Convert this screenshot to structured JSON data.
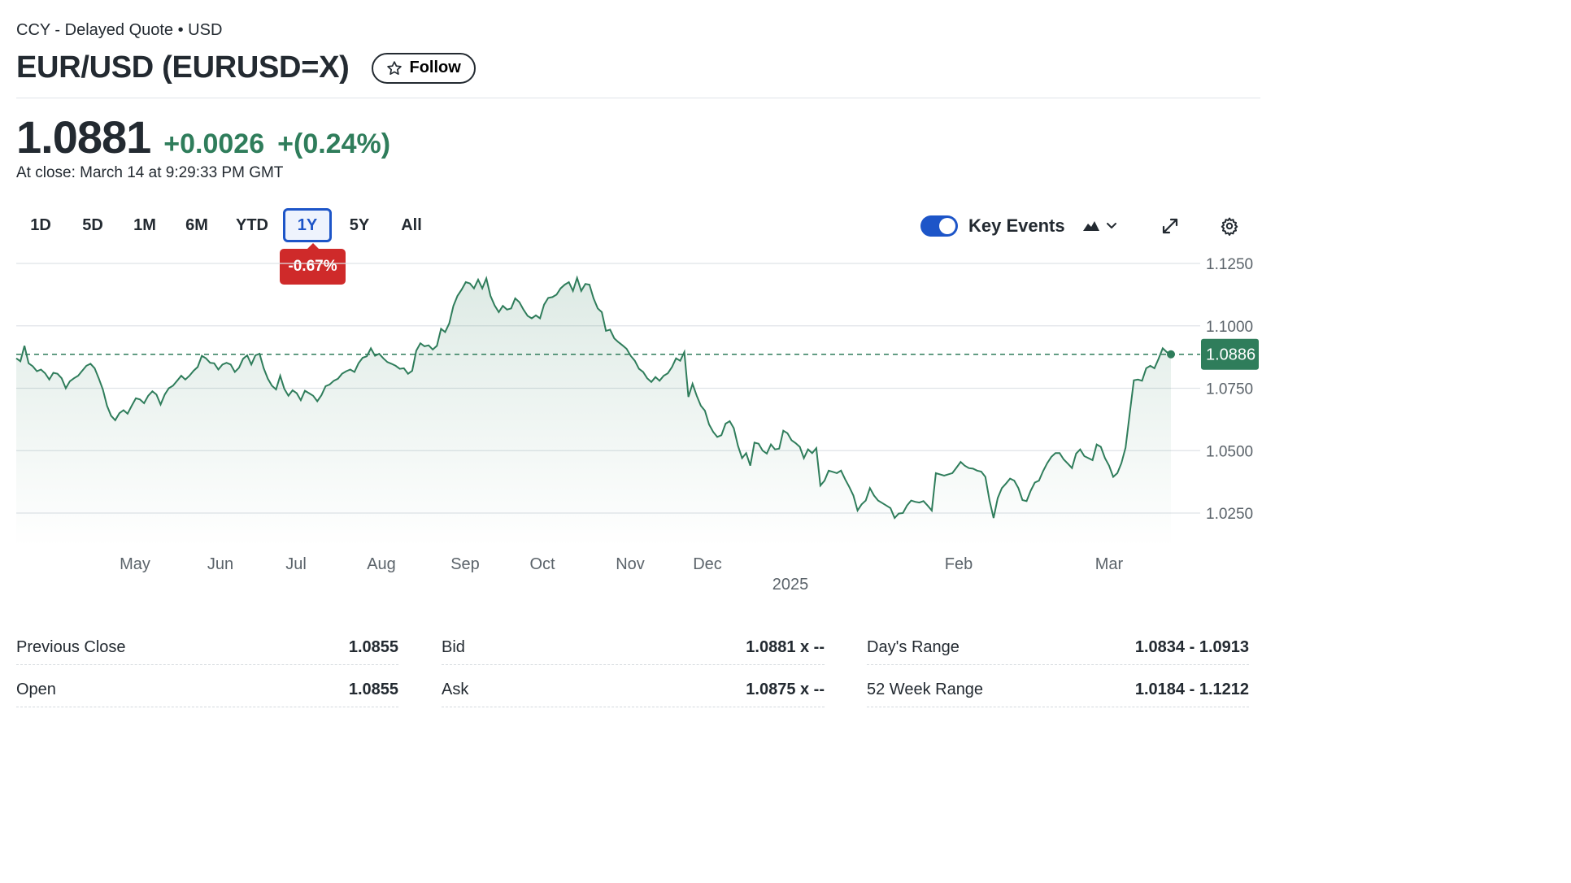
{
  "header": {
    "exchange_line": "CCY - Delayed Quote • USD",
    "title": "EUR/USD (EURUSD=X)",
    "follow_label": "Follow"
  },
  "quote": {
    "price": "1.0881",
    "change": "+0.0026",
    "change_pct": "+(0.24%)",
    "close_time": "At close: March 14 at 9:29:33 PM GMT"
  },
  "range_tabs": [
    "1D",
    "5D",
    "1M",
    "6M",
    "YTD",
    "1Y",
    "5Y",
    "All"
  ],
  "active_range": "1Y",
  "range_performance": "-0.67%",
  "controls": {
    "key_events_label": "Key Events",
    "key_events_enabled": true,
    "chart_type_icon": "mountain-chart-icon",
    "expand_icon": "expand-icon",
    "settings_icon": "gear-icon"
  },
  "colors": {
    "positive": "#2f7d5b",
    "negative": "#cf2a2a",
    "accent": "#1d55c8",
    "line": "#2f7d5b"
  },
  "chart_data": {
    "type": "area",
    "title": "",
    "xlabel": "",
    "ylabel": "",
    "ylim": [
      1.0175,
      1.1275
    ],
    "y_ticks": [
      "1.1250",
      "1.1000",
      "1.0750",
      "1.0500",
      "1.0250"
    ],
    "x_month_labels": [
      "May",
      "Jun",
      "Jul",
      "Aug",
      "Sep",
      "Oct",
      "Nov",
      "Dec",
      "Feb",
      "Mar"
    ],
    "x_year_label": "2025",
    "previous_close": 1.0855,
    "last_value_label": "1.0886",
    "last_value": 1.0886,
    "series": [
      {
        "values": [
          1.087,
          1.0858,
          1.092,
          1.085,
          1.0838,
          1.0818,
          1.0825,
          1.081,
          1.0785,
          1.0812,
          1.0808,
          1.079,
          1.075,
          1.0778,
          1.079,
          1.08,
          1.082,
          1.084,
          1.0848,
          1.083,
          1.079,
          1.0745,
          1.068,
          1.064,
          1.0622,
          1.065,
          1.0662,
          1.0648,
          1.068,
          1.071,
          1.0705,
          1.069,
          1.072,
          1.0738,
          1.0725,
          1.0685,
          1.0725,
          1.075,
          1.076,
          1.078,
          1.08,
          1.0785,
          1.08,
          1.082,
          1.0835,
          1.088,
          1.087,
          1.0852,
          1.085,
          1.0825,
          1.0845,
          1.0852,
          1.0845,
          1.0815,
          1.0832,
          1.0868,
          1.0882,
          1.0845,
          1.0882,
          1.0888,
          1.083,
          1.0788,
          1.076,
          1.0745,
          1.08,
          1.0748,
          1.072,
          1.0742,
          1.073,
          1.0702,
          1.074,
          1.073,
          1.072,
          1.0698,
          1.0722,
          1.0758,
          1.0765,
          1.078,
          1.0788,
          1.0808,
          1.0818,
          1.0825,
          1.0815,
          1.085,
          1.0872,
          1.0878,
          1.091,
          1.088,
          1.0888,
          1.087,
          1.0855,
          1.0848,
          1.084,
          1.0828,
          1.083,
          1.0808,
          1.082,
          1.09,
          1.093,
          1.0918,
          1.0922,
          1.0905,
          1.092,
          1.0988,
          1.0975,
          1.101,
          1.108,
          1.112,
          1.1145,
          1.1175,
          1.117,
          1.115,
          1.1185,
          1.115,
          1.119,
          1.112,
          1.1082,
          1.1055,
          1.108,
          1.1065,
          1.107,
          1.111,
          1.1095,
          1.1065,
          1.104,
          1.103,
          1.1042,
          1.103,
          1.1085,
          1.1112,
          1.1115,
          1.1125,
          1.115,
          1.1165,
          1.1175,
          1.114,
          1.1192,
          1.114,
          1.1168,
          1.1165,
          1.111,
          1.107,
          1.1055,
          1.098,
          1.0985,
          1.095,
          1.0935,
          1.0922,
          1.0908,
          1.088,
          1.086,
          1.0828,
          1.0815,
          1.079,
          1.0775,
          1.0795,
          1.078,
          1.08,
          1.081,
          1.0835,
          1.087,
          1.086,
          1.0895,
          1.0715,
          1.0768,
          1.072,
          1.068,
          1.066,
          1.0605,
          1.0575,
          1.0555,
          1.0562,
          1.0608,
          1.0618,
          1.059,
          1.052,
          1.047,
          1.049,
          1.044,
          1.0532,
          1.0528,
          1.05,
          1.0488,
          1.0525,
          1.0505,
          1.0508,
          1.058,
          1.057,
          1.0542,
          1.053,
          1.0515,
          1.047,
          1.0505,
          1.049,
          1.051,
          1.036,
          1.038,
          1.042,
          1.0415,
          1.041,
          1.042,
          1.0385,
          1.0355,
          1.032,
          1.026,
          1.0285,
          1.03,
          1.035,
          1.032,
          1.03,
          1.029,
          1.028,
          1.027,
          1.023,
          1.0248,
          1.025,
          1.028,
          1.03,
          1.0295,
          1.0292,
          1.0298,
          1.028,
          1.026,
          1.041,
          1.0405,
          1.04,
          1.0405,
          1.041,
          1.0432,
          1.0455,
          1.044,
          1.043,
          1.0428,
          1.042,
          1.0416,
          1.0395,
          1.03,
          1.023,
          1.031,
          1.035,
          1.0368,
          1.0388,
          1.038,
          1.035,
          1.0302,
          1.0298,
          1.034,
          1.0372,
          1.038,
          1.0418,
          1.045,
          1.0475,
          1.049,
          1.049,
          1.0465,
          1.0448,
          1.043,
          1.0488,
          1.0505,
          1.0478,
          1.047,
          1.0462,
          1.0525,
          1.0515,
          1.047,
          1.044,
          1.0395,
          1.041,
          1.045,
          1.0512,
          1.0648,
          1.0782,
          1.0785,
          1.078,
          1.083,
          1.084,
          1.083,
          1.0868,
          1.091,
          1.0895,
          1.0886
        ]
      }
    ]
  },
  "stats": {
    "col1": [
      {
        "label": "Previous Close",
        "value": "1.0855"
      },
      {
        "label": "Open",
        "value": "1.0855"
      }
    ],
    "col2": [
      {
        "label": "Bid",
        "value": "1.0881 x --"
      },
      {
        "label": "Ask",
        "value": "1.0875 x --"
      }
    ],
    "col3": [
      {
        "label": "Day's Range",
        "value": "1.0834 - 1.0913"
      },
      {
        "label": "52 Week Range",
        "value": "1.0184 - 1.1212"
      }
    ]
  }
}
